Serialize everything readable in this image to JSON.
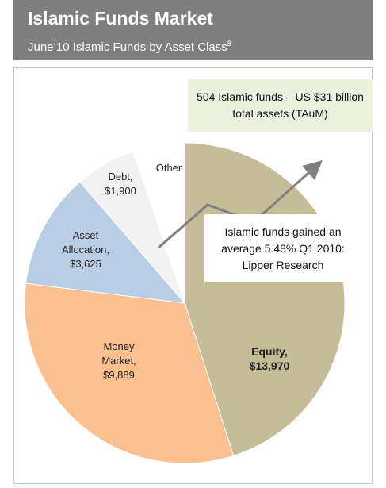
{
  "title": "Islamic Funds Market",
  "subtitle": "June’10 Islamic Funds by Asset Class",
  "subtitle_note": "8",
  "chart_data": {
    "type": "pie",
    "categories": [
      "Equity,",
      "Money Market,",
      "Asset Allocation,",
      "Debt,",
      "Other"
    ],
    "values": [
      13970,
      9889,
      3625,
      1900,
      1616
    ],
    "value_labels": [
      "$13,970",
      "$9,889",
      "$3,625",
      "$1,900",
      null
    ],
    "colors": [
      "#c4bd97",
      "#fac090",
      "#b9cde5",
      "#f2f2f2",
      "#ffffff"
    ],
    "annotations": [
      {
        "text": "504 Islamic funds – US $31 billion total assets (TAuM)"
      },
      {
        "text": "Islamic funds gained an average 5.48% Q1 2010: Lipper Research"
      }
    ]
  }
}
